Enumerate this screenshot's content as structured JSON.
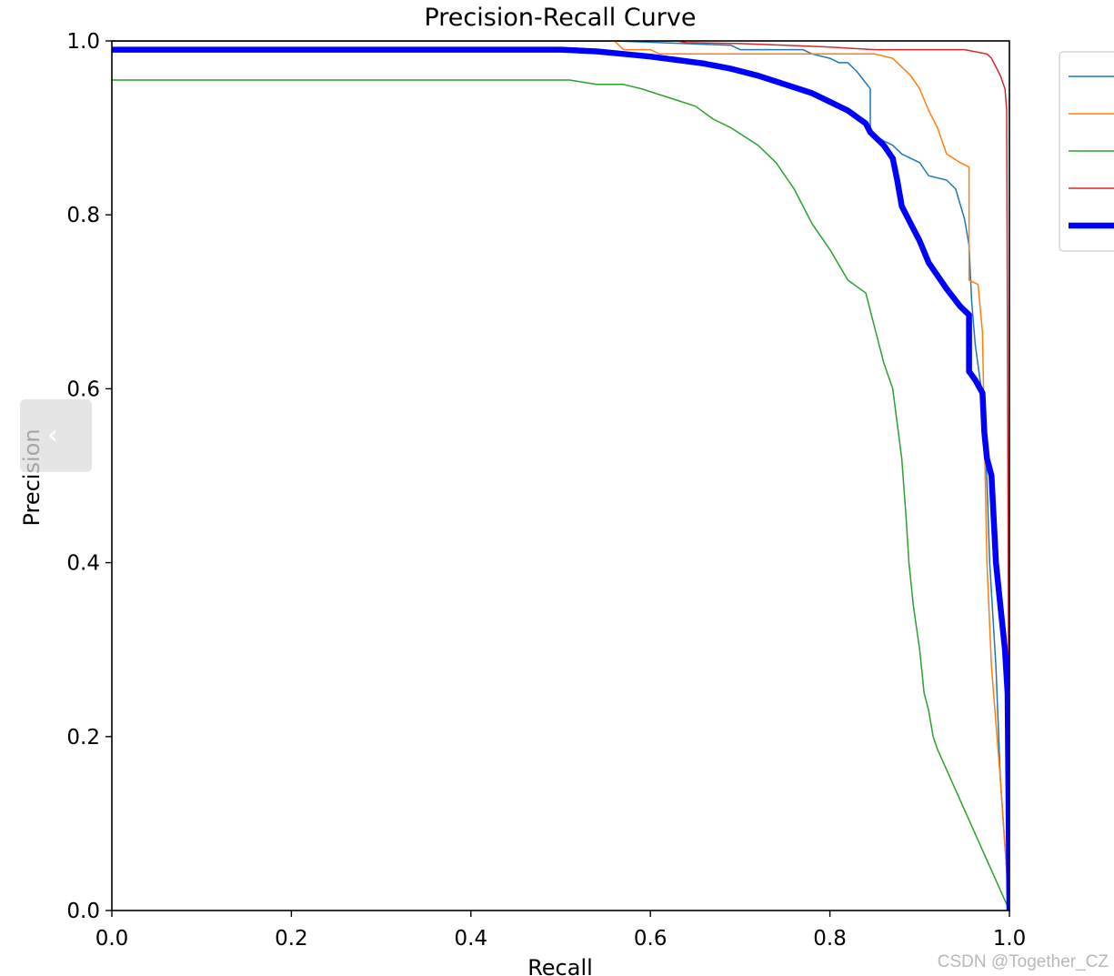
{
  "chart_data": {
    "type": "line",
    "title": "Precision-Recall Curve",
    "xlabel": "Recall",
    "ylabel": "Precision",
    "xlim": [
      0.0,
      1.0
    ],
    "ylim": [
      0.0,
      1.0
    ],
    "x_ticks": [
      "0.0",
      "0.2",
      "0.4",
      "0.6",
      "0.8",
      "1.0"
    ],
    "y_ticks": [
      "0.0",
      "0.2",
      "0.4",
      "0.6",
      "0.8",
      "1.0"
    ],
    "grid": false,
    "legend": "upper right outside (entries cropped)",
    "series": [
      {
        "color": "#1f77b4",
        "width": 1.5,
        "points": [
          [
            0.0,
            1.0
          ],
          [
            0.56,
            1.0
          ],
          [
            0.69,
            0.995
          ],
          [
            0.7,
            0.99
          ],
          [
            0.77,
            0.99
          ],
          [
            0.78,
            0.985
          ],
          [
            0.8,
            0.98
          ],
          [
            0.81,
            0.975
          ],
          [
            0.82,
            0.975
          ],
          [
            0.83,
            0.965
          ],
          [
            0.845,
            0.945
          ],
          [
            0.845,
            0.895
          ],
          [
            0.86,
            0.885
          ],
          [
            0.87,
            0.88
          ],
          [
            0.88,
            0.87
          ],
          [
            0.9,
            0.86
          ],
          [
            0.91,
            0.845
          ],
          [
            0.93,
            0.84
          ],
          [
            0.94,
            0.83
          ],
          [
            0.95,
            0.795
          ],
          [
            0.955,
            0.765
          ],
          [
            0.958,
            0.7
          ],
          [
            0.962,
            0.65
          ],
          [
            0.97,
            0.59
          ],
          [
            0.975,
            0.495
          ],
          [
            0.978,
            0.4
          ],
          [
            0.985,
            0.28
          ],
          [
            0.99,
            0.15
          ],
          [
            1.0,
            0.0
          ]
        ]
      },
      {
        "color": "#ff7f0e",
        "width": 1.5,
        "points": [
          [
            0.0,
            1.0
          ],
          [
            0.56,
            1.0
          ],
          [
            0.57,
            0.99
          ],
          [
            0.6,
            0.99
          ],
          [
            0.61,
            0.985
          ],
          [
            0.7,
            0.985
          ],
          [
            0.85,
            0.985
          ],
          [
            0.87,
            0.98
          ],
          [
            0.88,
            0.97
          ],
          [
            0.89,
            0.96
          ],
          [
            0.9,
            0.945
          ],
          [
            0.91,
            0.92
          ],
          [
            0.92,
            0.9
          ],
          [
            0.93,
            0.87
          ],
          [
            0.945,
            0.86
          ],
          [
            0.955,
            0.855
          ],
          [
            0.955,
            0.725
          ],
          [
            0.965,
            0.72
          ],
          [
            0.97,
            0.665
          ],
          [
            0.972,
            0.55
          ],
          [
            0.975,
            0.4
          ],
          [
            0.98,
            0.28
          ],
          [
            0.99,
            0.15
          ],
          [
            1.0,
            0.0
          ]
        ]
      },
      {
        "color": "#2ca02c",
        "width": 1.5,
        "points": [
          [
            0.0,
            0.955
          ],
          [
            0.51,
            0.955
          ],
          [
            0.54,
            0.95
          ],
          [
            0.57,
            0.95
          ],
          [
            0.59,
            0.945
          ],
          [
            0.62,
            0.935
          ],
          [
            0.65,
            0.925
          ],
          [
            0.67,
            0.91
          ],
          [
            0.69,
            0.9
          ],
          [
            0.72,
            0.88
          ],
          [
            0.74,
            0.86
          ],
          [
            0.76,
            0.83
          ],
          [
            0.78,
            0.79
          ],
          [
            0.8,
            0.76
          ],
          [
            0.82,
            0.725
          ],
          [
            0.84,
            0.71
          ],
          [
            0.85,
            0.67
          ],
          [
            0.86,
            0.63
          ],
          [
            0.87,
            0.6
          ],
          [
            0.875,
            0.56
          ],
          [
            0.88,
            0.52
          ],
          [
            0.885,
            0.45
          ],
          [
            0.888,
            0.4
          ],
          [
            0.893,
            0.35
          ],
          [
            0.9,
            0.3
          ],
          [
            0.905,
            0.25
          ],
          [
            0.91,
            0.23
          ],
          [
            0.915,
            0.2
          ],
          [
            0.92,
            0.185
          ],
          [
            1.0,
            0.0
          ]
        ]
      },
      {
        "color": "#d62728",
        "width": 1.5,
        "points": [
          [
            0.0,
            1.0
          ],
          [
            0.63,
            1.0
          ],
          [
            0.64,
            0.998
          ],
          [
            0.7,
            0.997
          ],
          [
            0.75,
            0.995
          ],
          [
            0.8,
            0.993
          ],
          [
            0.85,
            0.99
          ],
          [
            0.9,
            0.99
          ],
          [
            0.95,
            0.99
          ],
          [
            0.975,
            0.985
          ],
          [
            0.98,
            0.98
          ],
          [
            0.99,
            0.96
          ],
          [
            0.995,
            0.945
          ],
          [
            0.997,
            0.92
          ],
          [
            1.0,
            0.0
          ]
        ]
      },
      {
        "color": "#0000ff",
        "width": 6.5,
        "points": [
          [
            0.0,
            0.99
          ],
          [
            0.5,
            0.99
          ],
          [
            0.54,
            0.988
          ],
          [
            0.57,
            0.985
          ],
          [
            0.6,
            0.982
          ],
          [
            0.63,
            0.978
          ],
          [
            0.66,
            0.974
          ],
          [
            0.69,
            0.968
          ],
          [
            0.72,
            0.96
          ],
          [
            0.75,
            0.95
          ],
          [
            0.78,
            0.94
          ],
          [
            0.8,
            0.93
          ],
          [
            0.82,
            0.92
          ],
          [
            0.84,
            0.905
          ],
          [
            0.845,
            0.895
          ],
          [
            0.86,
            0.88
          ],
          [
            0.87,
            0.865
          ],
          [
            0.875,
            0.84
          ],
          [
            0.88,
            0.81
          ],
          [
            0.89,
            0.79
          ],
          [
            0.9,
            0.77
          ],
          [
            0.91,
            0.745
          ],
          [
            0.92,
            0.73
          ],
          [
            0.93,
            0.715
          ],
          [
            0.945,
            0.695
          ],
          [
            0.955,
            0.685
          ],
          [
            0.955,
            0.62
          ],
          [
            0.962,
            0.61
          ],
          [
            0.97,
            0.595
          ],
          [
            0.972,
            0.55
          ],
          [
            0.975,
            0.52
          ],
          [
            0.98,
            0.5
          ],
          [
            0.985,
            0.4
          ],
          [
            0.99,
            0.35
          ],
          [
            0.995,
            0.3
          ],
          [
            0.998,
            0.25
          ],
          [
            1.0,
            0.0
          ]
        ]
      }
    ]
  },
  "watermark": "CSDN @Together_CZ",
  "side_handle_icon": "chevron-left-icon"
}
